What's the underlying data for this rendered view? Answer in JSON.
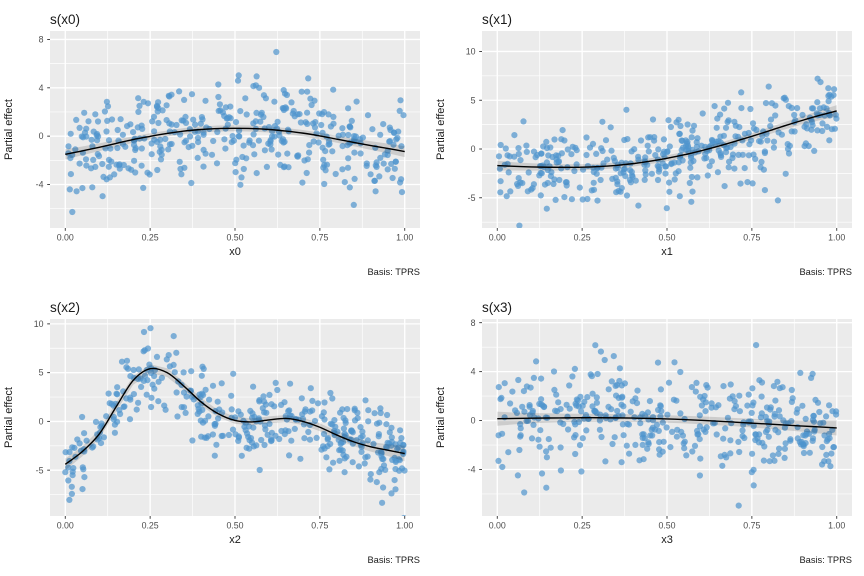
{
  "figure": {
    "kind": "gam-partial-effects-grid",
    "n_panels": 4,
    "caption_label": "Basis: TPRS",
    "y_axis_label": "Partial effect"
  },
  "style": {
    "page_bg": "#FFFFFF",
    "panel_bg": "#EBEBEB",
    "grid_color": "#FFFFFF",
    "grid_major_width": 1.35,
    "grid_minor_width": 0.65,
    "point_color": "#4F94CD",
    "point_opacity": 0.7,
    "point_radius": 3.1,
    "line_color": "#000000",
    "line_width": 1.4,
    "ribbon_color": "rgba(0,0,0,0.13)",
    "tick_color": "#333333",
    "tick_label_color": "#4D4D4D",
    "title_color": "#1A1A1A",
    "axis_title_color": "#1A1A1A",
    "caption_color": "#1A1A1A"
  },
  "chart_data": [
    {
      "type": "scatter",
      "title": "s(x0)",
      "xlabel": "x0",
      "ylabel": "Partial effect",
      "caption": "Basis: TPRS",
      "xlim": [
        -0.045,
        1.045
      ],
      "ylim": [
        -7.6,
        8.7
      ],
      "xticks": [
        0,
        0.25,
        0.5,
        0.75,
        1
      ],
      "xtick_labels": [
        "0.00",
        "0.25",
        "0.50",
        "0.75",
        "1.00"
      ],
      "yticks": [
        -4,
        0,
        4,
        8
      ],
      "ytick_labels": [
        "-4",
        "0",
        "4",
        "8"
      ],
      "grid": true,
      "legend": "none",
      "smooth": {
        "x": [
          0,
          0.05,
          0.1,
          0.15,
          0.2,
          0.25,
          0.3,
          0.35,
          0.4,
          0.45,
          0.5,
          0.55,
          0.6,
          0.65,
          0.7,
          0.75,
          0.8,
          0.85,
          0.9,
          0.95,
          1
        ],
        "y": [
          -1.5,
          -1.22,
          -0.92,
          -0.6,
          -0.28,
          -0.02,
          0.22,
          0.42,
          0.55,
          0.63,
          0.65,
          0.63,
          0.55,
          0.42,
          0.25,
          0.02,
          -0.25,
          -0.52,
          -0.78,
          -1.02,
          -1.28
        ],
        "ribbon_halfwidth": [
          0.42,
          0.36,
          0.32,
          0.29,
          0.27,
          0.26,
          0.25,
          0.25,
          0.25,
          0.25,
          0.25,
          0.25,
          0.25,
          0.25,
          0.26,
          0.27,
          0.29,
          0.32,
          0.36,
          0.4,
          0.45
        ]
      },
      "points": {
        "n": 400,
        "x_distribution": "uniform-0-1",
        "noise_sd": 2.0,
        "seed": 101
      }
    },
    {
      "type": "scatter",
      "title": "s(x1)",
      "xlabel": "x1",
      "ylabel": "Partial effect",
      "caption": "Basis: TPRS",
      "xlim": [
        -0.045,
        1.045
      ],
      "ylim": [
        -8.1,
        12.1
      ],
      "xticks": [
        0,
        0.25,
        0.5,
        0.75,
        1
      ],
      "xtick_labels": [
        "0.00",
        "0.25",
        "0.50",
        "0.75",
        "1.00"
      ],
      "yticks": [
        -5,
        0,
        5,
        10
      ],
      "ytick_labels": [
        "-5",
        "0",
        "5",
        "10"
      ],
      "grid": true,
      "legend": "none",
      "smooth": {
        "x": [
          0,
          0.05,
          0.1,
          0.15,
          0.2,
          0.25,
          0.3,
          0.35,
          0.4,
          0.45,
          0.5,
          0.55,
          0.6,
          0.65,
          0.7,
          0.75,
          0.8,
          0.85,
          0.9,
          0.95,
          1
        ],
        "y": [
          -1.7,
          -1.78,
          -1.84,
          -1.87,
          -1.88,
          -1.86,
          -1.8,
          -1.68,
          -1.5,
          -1.25,
          -0.95,
          -0.6,
          -0.18,
          0.28,
          0.78,
          1.3,
          1.85,
          2.42,
          2.95,
          3.45,
          3.9
        ],
        "ribbon_halfwidth": [
          0.5,
          0.42,
          0.37,
          0.34,
          0.32,
          0.31,
          0.3,
          0.3,
          0.3,
          0.3,
          0.3,
          0.3,
          0.3,
          0.31,
          0.32,
          0.33,
          0.35,
          0.38,
          0.42,
          0.5,
          0.6
        ]
      },
      "points": {
        "n": 400,
        "x_distribution": "uniform-0-1",
        "noise_sd": 2.0,
        "seed": 202
      }
    },
    {
      "type": "scatter",
      "title": "s(x2)",
      "xlabel": "x2",
      "ylabel": "Partial effect",
      "caption": "Basis: TPRS",
      "xlim": [
        -0.045,
        1.045
      ],
      "ylim": [
        -9.7,
        10.5
      ],
      "xticks": [
        0,
        0.25,
        0.5,
        0.75,
        1
      ],
      "xtick_labels": [
        "0.00",
        "0.25",
        "0.50",
        "0.75",
        "1.00"
      ],
      "yticks": [
        -5,
        0,
        5,
        10
      ],
      "ytick_labels": [
        "-5",
        "0",
        "5",
        "10"
      ],
      "grid": true,
      "legend": "none",
      "smooth": {
        "x": [
          0,
          0.05,
          0.1,
          0.15,
          0.2,
          0.25,
          0.3,
          0.35,
          0.4,
          0.45,
          0.5,
          0.55,
          0.6,
          0.65,
          0.7,
          0.75,
          0.8,
          0.85,
          0.9,
          0.95,
          1
        ],
        "y": [
          -4.4,
          -3.1,
          -1.3,
          1.5,
          4.2,
          5.4,
          5.0,
          3.6,
          2.0,
          0.8,
          0.1,
          -0.05,
          0.15,
          0.3,
          0.0,
          -0.6,
          -1.4,
          -2.1,
          -2.6,
          -2.95,
          -3.3
        ],
        "ribbon_halfwidth": [
          0.6,
          0.5,
          0.45,
          0.45,
          0.45,
          0.45,
          0.45,
          0.42,
          0.4,
          0.38,
          0.36,
          0.36,
          0.36,
          0.36,
          0.38,
          0.4,
          0.42,
          0.45,
          0.5,
          0.6,
          0.8
        ]
      },
      "points": {
        "n": 400,
        "x_distribution": "uniform-0-1",
        "noise_sd": 2.0,
        "seed": 303
      }
    },
    {
      "type": "scatter",
      "title": "s(x3)",
      "xlabel": "x3",
      "ylabel": "Partial effect",
      "caption": "Basis: TPRS",
      "xlim": [
        -0.045,
        1.045
      ],
      "ylim": [
        -7.8,
        8.3
      ],
      "xticks": [
        0,
        0.25,
        0.5,
        0.75,
        1
      ],
      "xtick_labels": [
        "0.00",
        "0.25",
        "0.50",
        "0.75",
        "1.00"
      ],
      "yticks": [
        -4,
        0,
        4,
        8
      ],
      "ytick_labels": [
        "-4",
        "0",
        "4",
        "8"
      ],
      "grid": true,
      "legend": "none",
      "smooth": {
        "x": [
          0,
          0.05,
          0.1,
          0.15,
          0.2,
          0.25,
          0.3,
          0.35,
          0.4,
          0.45,
          0.5,
          0.55,
          0.6,
          0.65,
          0.7,
          0.75,
          0.8,
          0.85,
          0.9,
          0.95,
          1
        ],
        "y": [
          0.15,
          0.17,
          0.19,
          0.21,
          0.22,
          0.23,
          0.23,
          0.22,
          0.2,
          0.17,
          0.13,
          0.08,
          0.02,
          -0.05,
          -0.13,
          -0.21,
          -0.29,
          -0.37,
          -0.45,
          -0.52,
          -0.6
        ],
        "ribbon_halfwidth": [
          0.58,
          0.48,
          0.42,
          0.38,
          0.35,
          0.33,
          0.32,
          0.31,
          0.31,
          0.31,
          0.31,
          0.31,
          0.32,
          0.33,
          0.34,
          0.36,
          0.38,
          0.42,
          0.47,
          0.54,
          0.62
        ]
      },
      "points": {
        "n": 400,
        "x_distribution": "uniform-0-1",
        "noise_sd": 2.0,
        "seed": 404
      }
    }
  ]
}
